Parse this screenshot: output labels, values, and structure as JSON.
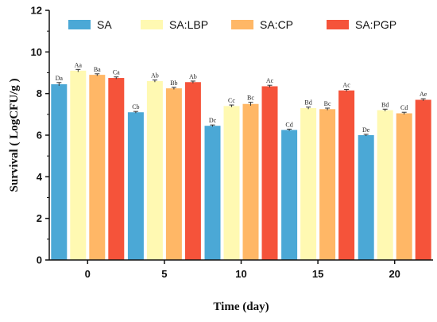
{
  "chart_data": {
    "type": "bar",
    "title": "",
    "xlabel": "Time (day)",
    "ylabel": "Survival ( LogCFU/g )",
    "ylim": [
      0,
      12
    ],
    "yticks": [
      0,
      2,
      4,
      6,
      8,
      10,
      12
    ],
    "categories": [
      "0",
      "5",
      "10",
      "15",
      "20"
    ],
    "legend_position": "top",
    "grid": false,
    "series": [
      {
        "name": "SA",
        "color": "#4BA8D6",
        "values": [
          8.45,
          7.1,
          6.45,
          6.25,
          6.0
        ],
        "errors": [
          0.08,
          0.04,
          0.04,
          0.04,
          0.04
        ],
        "labels": [
          "Da",
          "Cb",
          "Dc",
          "Cd",
          "De"
        ]
      },
      {
        "name": "SA:LBP",
        "color": "#FFF9B2",
        "values": [
          9.1,
          8.6,
          7.4,
          7.3,
          7.2
        ],
        "errors": [
          0.06,
          0.05,
          0.05,
          0.05,
          0.05
        ],
        "labels": [
          "Aa",
          "Ab",
          "Cc",
          "Bd",
          "Bd"
        ]
      },
      {
        "name": "SA:CP",
        "color": "#FFB766",
        "values": [
          8.9,
          8.25,
          7.5,
          7.25,
          7.05
        ],
        "errors": [
          0.05,
          0.05,
          0.08,
          0.05,
          0.05
        ],
        "labels": [
          "Ba",
          "Bb",
          "Bc",
          "Bc",
          "Cd"
        ]
      },
      {
        "name": "SA:PGP",
        "color": "#F5533A",
        "values": [
          8.75,
          8.55,
          8.35,
          8.15,
          7.7
        ],
        "errors": [
          0.05,
          0.05,
          0.05,
          0.05,
          0.05
        ],
        "labels": [
          "Ca",
          "Ab",
          "Ac",
          "Ac",
          "Ae"
        ]
      }
    ]
  }
}
